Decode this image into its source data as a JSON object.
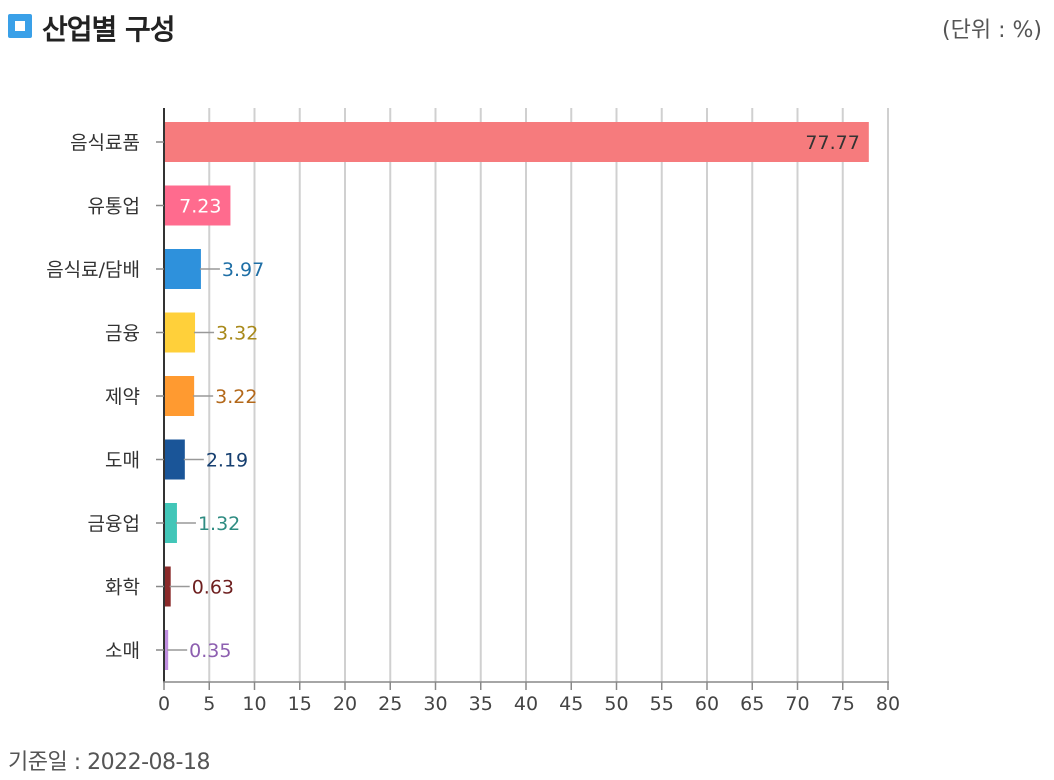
{
  "header": {
    "title": "산업별 구성",
    "unit": "(단위 : %)"
  },
  "footer": {
    "reference_date": "기준일 : 2022-08-18"
  },
  "colors": {
    "accent": "#3aa0e8",
    "grid": "#d0d0d0",
    "axis": "#333333"
  },
  "chart_data": {
    "type": "bar",
    "orientation": "horizontal",
    "categories": [
      "음식료품",
      "유통업",
      "음식료/담배",
      "금융",
      "제약",
      "도매",
      "금융업",
      "화학",
      "소매"
    ],
    "values": [
      77.77,
      7.23,
      3.97,
      3.32,
      3.22,
      2.19,
      1.32,
      0.63,
      0.35
    ],
    "value_labels": [
      "77.77",
      "7.23",
      "3.97",
      "3.32",
      "3.22",
      "2.19",
      "1.32",
      "0.63",
      "0.35"
    ],
    "bar_colors": [
      "#f67b7d",
      "#ff6b8e",
      "#2e91dc",
      "#ffd03a",
      "#ff9a30",
      "#1a5598",
      "#42c6b8",
      "#8a2a2a",
      "#c08ee0"
    ],
    "label_colors": [
      "#333333",
      "#ffffff",
      "#1f6fa6",
      "#a8891a",
      "#b3681a",
      "#163f70",
      "#2f8c82",
      "#6e1f1f",
      "#8d5fb0"
    ],
    "xlim": [
      0,
      80
    ],
    "x_ticks": [
      "0",
      "5",
      "10",
      "15",
      "20",
      "25",
      "30",
      "35",
      "40",
      "45",
      "50",
      "55",
      "60",
      "65",
      "70",
      "75",
      "80"
    ],
    "grid": true,
    "legend": "none"
  }
}
